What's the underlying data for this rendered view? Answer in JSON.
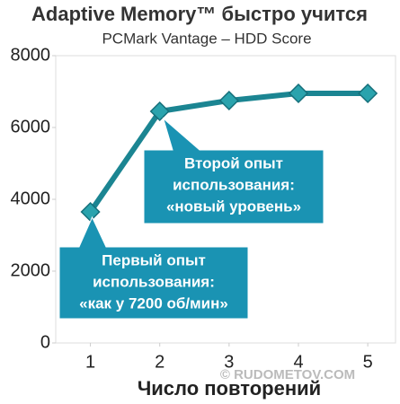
{
  "chart_data": {
    "type": "line",
    "title": "Adaptive Memory™ быстро учится",
    "subtitle": "PCMark Vantage – HDD Score",
    "x_label": "Число повторений",
    "x": [
      1,
      2,
      3,
      4,
      5
    ],
    "series": [
      {
        "color": "#1b8592",
        "values": [
          3650,
          6450,
          6750,
          6950,
          6950
        ]
      }
    ],
    "xlim": [
      0.5,
      5.4
    ],
    "xticks": [
      1,
      2,
      3,
      4,
      5
    ],
    "ylim": [
      0,
      8000
    ],
    "yticks": [
      0,
      2000,
      4000,
      6000,
      8000
    ],
    "annotations": [
      {
        "lines": [
          "Первый опыт",
          "использования:",
          "«как у 7200 об/мин»"
        ]
      },
      {
        "lines": [
          "Второй опыт",
          "использования:",
          "«новый уровень»"
        ]
      }
    ],
    "watermark": "© RUDOMETOV.COM"
  }
}
